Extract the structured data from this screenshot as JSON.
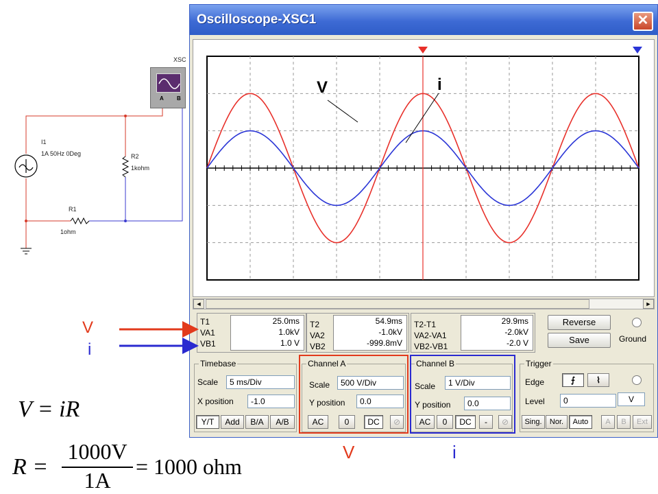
{
  "schematic": {
    "scope_label": "XSC",
    "pin_a": "A",
    "pin_b": "B",
    "source_name": "I1",
    "source_value": "1A 50Hz 0Deg",
    "r2_name": "R2",
    "r2_value": "1kohm",
    "r1_name": "R1",
    "r1_value": "1ohm"
  },
  "window": {
    "title": "Oscilloscope-XSC1",
    "close_glyph": "✕"
  },
  "screen": {
    "annotation_v": "V",
    "annotation_i": "i",
    "colors": {
      "channel_a": "#e8302a",
      "channel_b": "#2a35d6",
      "cursor_t1": "#e8302a",
      "cursor_t2": "#2a35d6"
    }
  },
  "chart_data": {
    "type": "line",
    "x_unit": "ms",
    "time_per_div": 5,
    "divisions_x": 10,
    "divisions_y": 6,
    "grid": true,
    "series": [
      {
        "name": "V",
        "channel": "A",
        "amplitude_divs": 2.0,
        "period_ms": 20,
        "phase_deg": 0,
        "color": "#e8302a"
      },
      {
        "name": "i",
        "channel": "B",
        "amplitude_divs": 1.0,
        "period_ms": 20,
        "phase_deg": 0,
        "color": "#2a35d6"
      }
    ],
    "cursor_t1_ms": 25.0,
    "cursor_t2_ms": 54.9
  },
  "readouts": {
    "t1": {
      "labels": [
        "T1",
        "VA1",
        "VB1"
      ],
      "values": [
        "25.0ms",
        "1.0kV",
        "1.0 V"
      ]
    },
    "t2": {
      "labels": [
        "T2",
        "VA2",
        "VB2"
      ],
      "values": [
        "54.9ms",
        "-1.0kV",
        "-999.8mV"
      ]
    },
    "diff": {
      "labels": [
        "T2-T1",
        "VA2-VA1",
        "VB2-VB1"
      ],
      "values": [
        "29.9ms",
        "-2.0kV",
        "-2.0 V"
      ]
    },
    "reverse_label": "Reverse",
    "save_label": "Save",
    "ground_label": "Ground"
  },
  "timebase": {
    "title": "Timebase",
    "scale_label": "Scale",
    "scale_value": "5 ms/Div",
    "xpos_label": "X position",
    "xpos_value": "-1.0",
    "buttons": [
      "Y/T",
      "Add",
      "B/A",
      "A/B"
    ]
  },
  "channel_a": {
    "title": "Channel A",
    "scale_label": "Scale",
    "scale_value": "500 V/Div",
    "ypos_label": "Y position",
    "ypos_value": "0.0",
    "buttons": [
      "AC",
      "0",
      "DC"
    ]
  },
  "channel_b": {
    "title": "Channel B",
    "scale_label": "Scale",
    "scale_value": "1 V/Div",
    "ypos_label": "Y position",
    "ypos_value": "0.0",
    "buttons": [
      "AC",
      "0",
      "DC",
      "-"
    ]
  },
  "trigger": {
    "title": "Trigger",
    "edge_label": "Edge",
    "rise_glyph": "⨍",
    "fall_glyph": "⌇",
    "level_label": "Level",
    "level_value": "0",
    "level_unit": "V",
    "buttons": [
      "Sing.",
      "Nor.",
      "Auto"
    ],
    "source_buttons": [
      "A",
      "B",
      "Ext"
    ]
  },
  "annotations": {
    "v_left": "V",
    "i_left": "i",
    "v_bottom": "V",
    "i_bottom": "i",
    "red": "#e23a1c",
    "blue": "#2a2ad0"
  },
  "formulas": {
    "ohm_law": "V = iR",
    "r_lhs": "R =",
    "r_num": "1000V",
    "r_den": "1A",
    "r_rhs": "= 1000 ohm"
  }
}
